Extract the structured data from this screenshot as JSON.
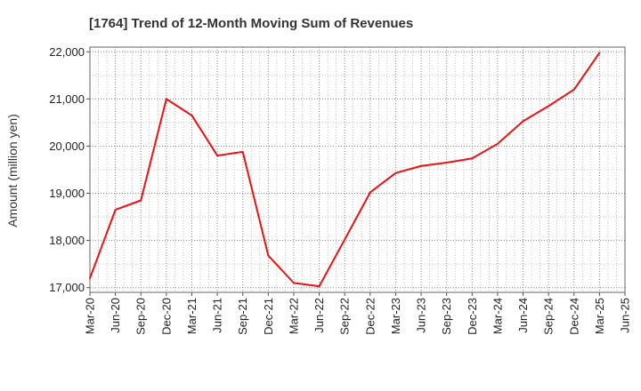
{
  "chart_data": {
    "type": "line",
    "title": "[1764]  Trend of 12-Month Moving Sum of Revenues",
    "xlabel": "",
    "ylabel": "Amount (million yen)",
    "ylim": [
      16900,
      22100
    ],
    "yticks": [
      17000,
      18000,
      19000,
      20000,
      21000,
      22000
    ],
    "ytick_labels": [
      "17,000",
      "18,000",
      "19,000",
      "20,000",
      "21,000",
      "22,000"
    ],
    "xtick_labels": [
      "Mar-20",
      "Jun-20",
      "Sep-20",
      "Dec-20",
      "Mar-21",
      "Jun-21",
      "Sep-21",
      "Dec-21",
      "Mar-22",
      "Jun-22",
      "Sep-22",
      "Dec-22",
      "Mar-23",
      "Jun-23",
      "Sep-23",
      "Dec-23",
      "Mar-24",
      "Jun-24",
      "Sep-24",
      "Dec-24",
      "Mar-25",
      "Jun-25"
    ],
    "grid": true,
    "series": [
      {
        "color": "#ee1111",
        "x": [
          "Mar-20",
          "Jun-20",
          "Sep-20",
          "Dec-20",
          "Mar-21",
          "Jun-21",
          "Sep-21",
          "Dec-21",
          "Mar-22",
          "Jun-22",
          "Sep-22",
          "Dec-22",
          "Mar-23",
          "Jun-23",
          "Sep-23",
          "Dec-23",
          "Mar-24",
          "Jun-24",
          "Sep-24",
          "Dec-24",
          "Mar-25"
        ],
        "values": [
          17200,
          18650,
          18850,
          21000,
          20650,
          19800,
          19880,
          17680,
          17100,
          17030,
          18020,
          19020,
          19430,
          19580,
          19650,
          19740,
          20050,
          20530,
          20850,
          21200,
          21980
        ]
      }
    ]
  }
}
